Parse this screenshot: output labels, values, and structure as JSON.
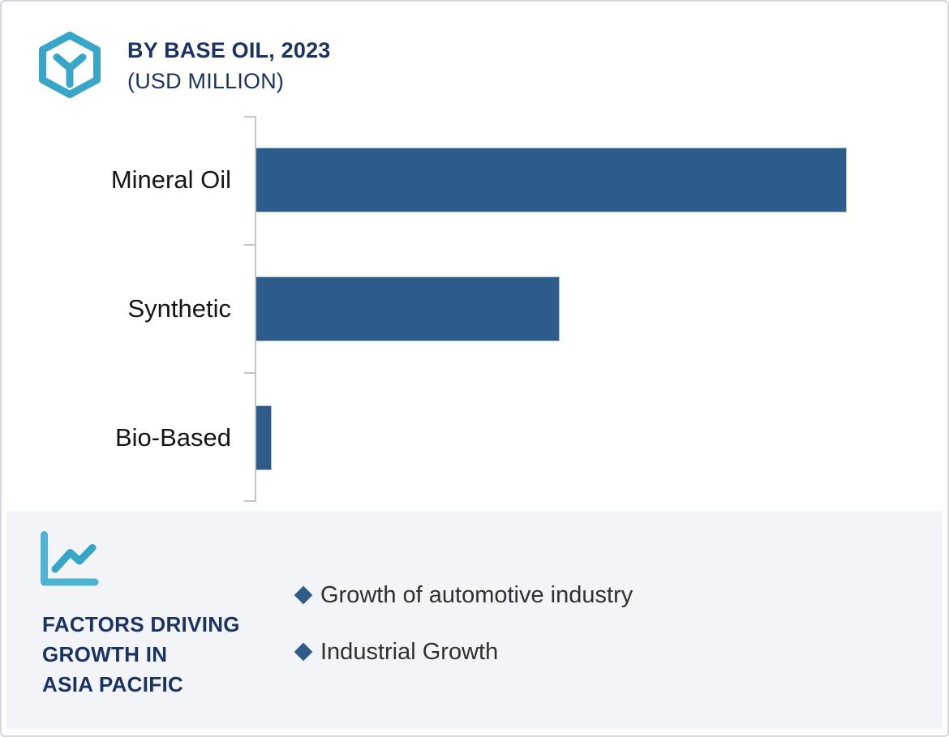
{
  "header": {
    "title": "BY BASE OIL, 2023",
    "subtitle": "(USD MILLION)",
    "logo_icon": "hexagon-cube-icon"
  },
  "chart_data": {
    "type": "bar",
    "orientation": "horizontal",
    "title": "BY BASE OIL, 2023",
    "subtitle": "(USD MILLION)",
    "unit": "USD Million",
    "categories": [
      "Mineral Oil",
      "Synthetic",
      "Bio-Based"
    ],
    "values_relative": [
      100,
      51.4,
      2.6
    ],
    "xlim": [
      0,
      116.6
    ],
    "value_labels_shown": false,
    "gridlines": false,
    "legend": "none",
    "note": "Bars carry no numeric labels; values are relative lengths with longest bar (Mineral Oil) = 100."
  },
  "factors": {
    "icon": "line-chart-icon",
    "title_lines": [
      "FACTORS DRIVING",
      "GROWTH IN",
      "ASIA PACIFIC"
    ],
    "items": [
      {
        "bullet": "diamond",
        "label": "Growth of automotive industry"
      },
      {
        "bullet": "diamond",
        "label": "Industrial Growth"
      }
    ]
  },
  "colors": {
    "bar_fill": "#2d5c8a",
    "navy_text": "#1b3363",
    "teal_icon": "#37a6c9",
    "axis_line": "#c6c6c6",
    "section_background": "#f2f4f8",
    "diamond_bullet": "#2d5c8a",
    "category_text": "#141414",
    "body_text": "#303030",
    "card_border": "#d7d7e0"
  }
}
